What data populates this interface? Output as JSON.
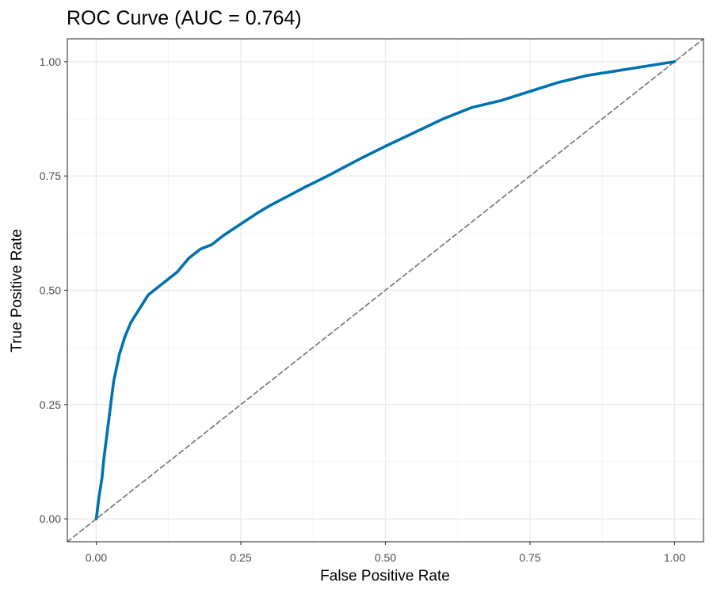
{
  "chart_data": {
    "type": "line",
    "title": "ROC Curve (AUC = 0.764)",
    "xlabel": "False Positive Rate",
    "ylabel": "True Positive Rate",
    "xlim": [
      -0.05,
      1.05
    ],
    "ylim": [
      -0.05,
      1.05
    ],
    "x_ticks": [
      0,
      0.25,
      0.5,
      0.75,
      1
    ],
    "x_tick_labels": [
      "0.00",
      "0.25",
      "0.50",
      "0.75",
      "1.00"
    ],
    "y_ticks": [
      0,
      0.25,
      0.5,
      0.75,
      1
    ],
    "y_tick_labels": [
      "0.00",
      "0.25",
      "0.50",
      "0.75",
      "1.00"
    ],
    "grid": true,
    "series": [
      {
        "color": "#0072b2",
        "x": [
          0,
          0.005,
          0.01,
          0.013,
          0.016,
          0.02,
          0.025,
          0.03,
          0.035,
          0.04,
          0.05,
          0.06,
          0.07,
          0.08,
          0.09,
          0.1,
          0.11,
          0.12,
          0.14,
          0.16,
          0.18,
          0.2,
          0.22,
          0.25,
          0.28,
          0.3,
          0.33,
          0.36,
          0.4,
          0.43,
          0.46,
          0.5,
          0.55,
          0.6,
          0.65,
          0.7,
          0.75,
          0.8,
          0.85,
          0.9,
          0.95,
          1
        ],
        "y": [
          0,
          0.05,
          0.09,
          0.13,
          0.16,
          0.2,
          0.25,
          0.3,
          0.33,
          0.36,
          0.4,
          0.43,
          0.45,
          0.47,
          0.49,
          0.5,
          0.51,
          0.52,
          0.54,
          0.57,
          0.59,
          0.6,
          0.62,
          0.645,
          0.67,
          0.685,
          0.705,
          0.725,
          0.75,
          0.77,
          0.79,
          0.815,
          0.845,
          0.875,
          0.9,
          0.915,
          0.935,
          0.955,
          0.97,
          0.98,
          0.99,
          1
        ]
      },
      {
        "color": "#7f7f7f",
        "dashed": true,
        "x": [
          -0.05,
          1.05
        ],
        "y": [
          -0.05,
          1.05
        ]
      }
    ]
  }
}
